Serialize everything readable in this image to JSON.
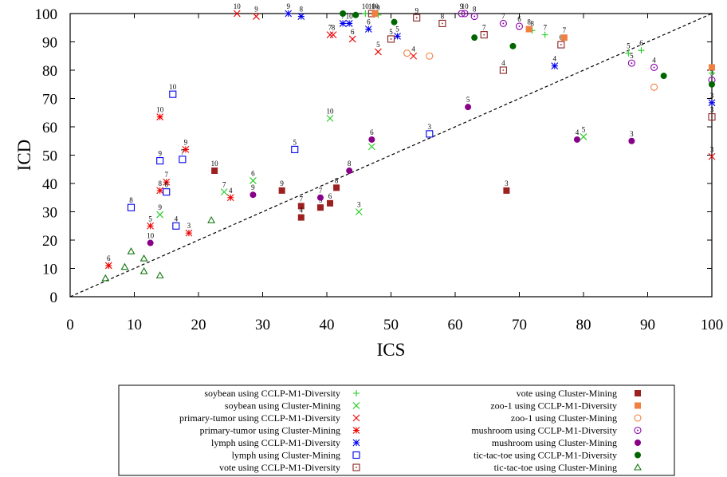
{
  "chart_data": {
    "type": "scatter",
    "title": "",
    "xlabel": "ICS",
    "ylabel": "ICD",
    "xlim": [
      0,
      100
    ],
    "ylim": [
      0,
      100
    ],
    "xticks": [
      0,
      10,
      20,
      30,
      40,
      50,
      60,
      70,
      80,
      90,
      100
    ],
    "yticks": [
      0,
      10,
      20,
      30,
      40,
      50,
      60,
      70,
      80,
      90,
      100
    ],
    "grid": false,
    "reference_line": "y = x (dashed)",
    "legend_placement": "bottom",
    "series": [
      {
        "name": "soybean using CCLP-M1-Diversity",
        "marker": "plus",
        "color": "#22cc22",
        "points": [
          [
            46,
            100,
            "10"
          ],
          [
            48,
            99.5,
            "9"
          ],
          [
            72,
            94,
            "8"
          ],
          [
            74,
            92.5,
            "7"
          ],
          [
            87,
            86,
            "5"
          ],
          [
            89,
            87,
            "6"
          ],
          [
            100,
            79,
            ""
          ]
        ]
      },
      {
        "name": "soybean using Cluster-Mining",
        "marker": "x",
        "color": "#22cc22",
        "points": [
          [
            40.5,
            63,
            "10"
          ],
          [
            28.5,
            41,
            "6"
          ],
          [
            24,
            37,
            "7"
          ],
          [
            47,
            53,
            "6"
          ],
          [
            14,
            29,
            "9"
          ],
          [
            45,
            30,
            "3"
          ],
          [
            80,
            56.5,
            "5"
          ]
        ]
      },
      {
        "name": "primary-tumor using CCLP-M1-Diversity",
        "marker": "x",
        "color": "#ee0000",
        "points": [
          [
            26,
            100,
            "10"
          ],
          [
            29,
            99,
            "9"
          ],
          [
            40.5,
            92.5,
            "7"
          ],
          [
            41,
            92.5,
            "8"
          ],
          [
            44,
            91,
            "6"
          ],
          [
            48,
            86.5,
            "5"
          ],
          [
            53.5,
            85,
            "4"
          ],
          [
            100,
            49.5,
            "3"
          ]
        ]
      },
      {
        "name": "primary-tumor using Cluster-Mining",
        "marker": "star",
        "color": "#ee0000",
        "points": [
          [
            14,
            63.5,
            "10"
          ],
          [
            18,
            52,
            "9"
          ],
          [
            15,
            40.5,
            "7"
          ],
          [
            14,
            37.5,
            "8"
          ],
          [
            25,
            35,
            "4"
          ],
          [
            12.5,
            25,
            "5"
          ],
          [
            18.5,
            22.5,
            "3"
          ],
          [
            6,
            11,
            "6"
          ]
        ]
      },
      {
        "name": "lymph using CCLP-M1-Diversity",
        "marker": "star",
        "color": "#0000ee",
        "points": [
          [
            34,
            100,
            "9"
          ],
          [
            36,
            99,
            "8"
          ],
          [
            42.5,
            96.5,
            "7"
          ],
          [
            43.5,
            96.5,
            "10"
          ],
          [
            46.5,
            94.5,
            "6"
          ],
          [
            51,
            92,
            "5"
          ],
          [
            75.5,
            81.5,
            "4"
          ],
          [
            100,
            68.5,
            "3"
          ]
        ]
      },
      {
        "name": "lymph using Cluster-Mining",
        "marker": "square-open",
        "color": "#0000ee",
        "points": [
          [
            16,
            71.5,
            "10"
          ],
          [
            35,
            52,
            "5"
          ],
          [
            14,
            48,
            "9"
          ],
          [
            17.5,
            48.5,
            "7"
          ],
          [
            15,
            37,
            "6"
          ],
          [
            9.5,
            31.5,
            "8"
          ],
          [
            16.5,
            25,
            "4"
          ],
          [
            56,
            57.5,
            "3"
          ]
        ]
      },
      {
        "name": "vote using CCLP-M1-Diversity",
        "marker": "square-dot",
        "color": "#8b2222",
        "points": [
          [
            47,
            100,
            "10"
          ],
          [
            50,
            91,
            "5"
          ],
          [
            54,
            98.5,
            "9"
          ],
          [
            58,
            96.5,
            "8"
          ],
          [
            64.5,
            92.5,
            "7"
          ],
          [
            67.5,
            80,
            "4"
          ],
          [
            76.5,
            89,
            "6"
          ],
          [
            100,
            63.5,
            "3"
          ]
        ]
      },
      {
        "name": "vote using Cluster-Mining",
        "marker": "square-filled",
        "color": "#9c2020",
        "points": [
          [
            22.5,
            44.5,
            "10"
          ],
          [
            33,
            37.5,
            "9"
          ],
          [
            36,
            32,
            "7"
          ],
          [
            36,
            28,
            "4"
          ],
          [
            39,
            31.5,
            "5"
          ],
          [
            40.5,
            33,
            "6"
          ],
          [
            41.5,
            38.5,
            "8"
          ],
          [
            68,
            37.5,
            "3"
          ]
        ]
      },
      {
        "name": "zoo-1 using CCLP-M1-Diversity",
        "marker": "square-filled",
        "color": "#f08040",
        "points": [
          [
            47.5,
            100,
            "10"
          ],
          [
            71.5,
            94.5,
            "8"
          ],
          [
            77,
            91.5,
            "7"
          ],
          [
            100,
            81,
            ""
          ]
        ]
      },
      {
        "name": "zoo-1 using Cluster-Mining",
        "marker": "circle-open",
        "color": "#f08040",
        "points": [
          [
            52.5,
            86,
            ""
          ],
          [
            56,
            85,
            ""
          ],
          [
            91,
            74,
            ""
          ]
        ]
      },
      {
        "name": "mushroom using CCLP-M1-Diversity",
        "marker": "circle-dot",
        "color": "#8800aa",
        "points": [
          [
            61,
            100,
            "9"
          ],
          [
            61.5,
            100,
            "10"
          ],
          [
            63,
            99,
            "8"
          ],
          [
            67.5,
            96.5,
            "7"
          ],
          [
            70,
            95.5,
            "6"
          ],
          [
            87.5,
            82.5,
            "5"
          ],
          [
            91,
            81,
            "4"
          ],
          [
            100,
            76.5,
            "3"
          ]
        ]
      },
      {
        "name": "mushroom using Cluster-Mining",
        "marker": "circle-filled",
        "color": "#880088",
        "points": [
          [
            62,
            67,
            "5"
          ],
          [
            47,
            55.5,
            "6"
          ],
          [
            43.5,
            44.5,
            "8"
          ],
          [
            28.5,
            36,
            "9"
          ],
          [
            39,
            35,
            "7"
          ],
          [
            12.5,
            19,
            "10"
          ],
          [
            79,
            55.5,
            "4"
          ],
          [
            87.5,
            55,
            "3"
          ]
        ]
      },
      {
        "name": "tic-tac-toe using CCLP-M1-Diversity",
        "marker": "circle-filled",
        "color": "#006600",
        "points": [
          [
            42.5,
            100,
            ""
          ],
          [
            44.5,
            99.5,
            ""
          ],
          [
            50.5,
            97,
            ""
          ],
          [
            63,
            91.5,
            ""
          ],
          [
            69,
            88.5,
            ""
          ],
          [
            92.5,
            78,
            ""
          ],
          [
            100,
            75,
            ""
          ]
        ]
      },
      {
        "name": "tic-tac-toe using Cluster-Mining",
        "marker": "triangle-open",
        "color": "#117711",
        "points": [
          [
            22,
            27,
            ""
          ],
          [
            11.5,
            13.5,
            ""
          ],
          [
            9.5,
            16,
            ""
          ],
          [
            8.5,
            10.5,
            ""
          ],
          [
            11.5,
            9,
            ""
          ],
          [
            14,
            7.5,
            ""
          ],
          [
            5.5,
            6.5,
            ""
          ]
        ]
      }
    ]
  }
}
